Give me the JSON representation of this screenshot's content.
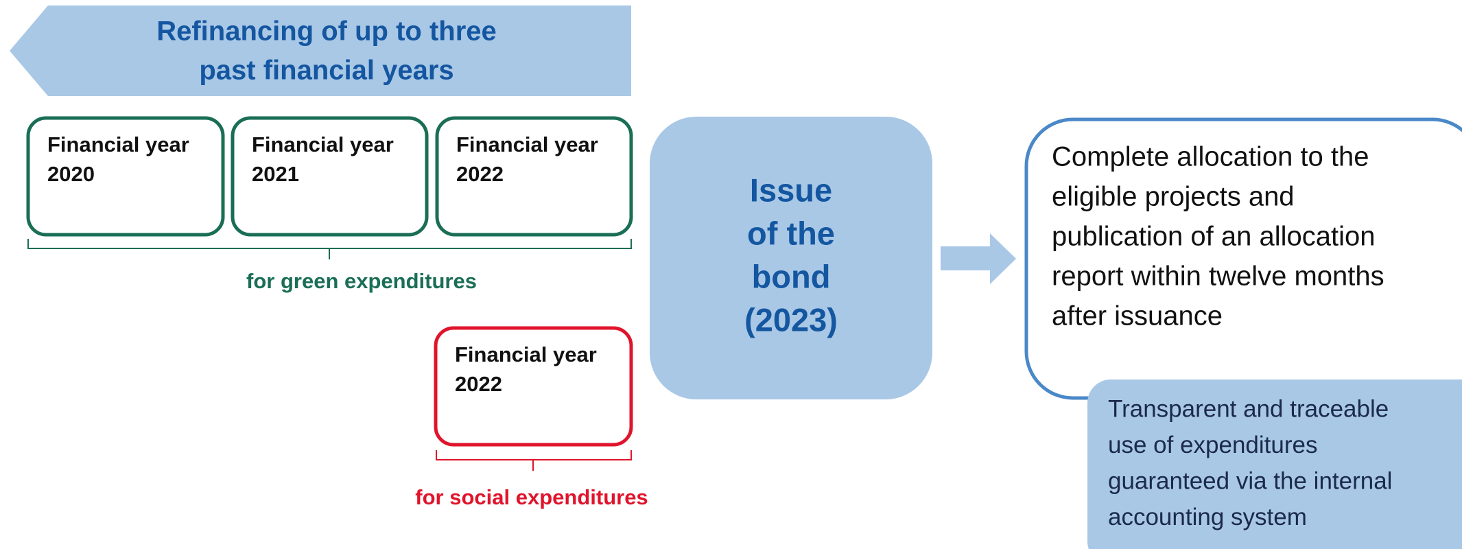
{
  "banner": {
    "lines": [
      "Refinancing of up to three",
      "past financial years"
    ]
  },
  "green_years": [
    {
      "lines": [
        "Financial year",
        "2020"
      ]
    },
    {
      "lines": [
        "Financial year",
        "2021"
      ]
    },
    {
      "lines": [
        "Financial year",
        "2022"
      ]
    }
  ],
  "green_label": "for green expenditures",
  "social_years": [
    {
      "lines": [
        "Financial year",
        "2022"
      ]
    }
  ],
  "social_label": "for social expenditures",
  "bond": {
    "lines": [
      "Issue",
      "of the",
      "bond",
      "(2023)"
    ]
  },
  "result": {
    "lines": [
      "Complete allocation to the",
      "eligible projects and",
      "publication of an allocation",
      "report within twelve months",
      "after issuance"
    ]
  },
  "note": {
    "lines": [
      "Transparent and traceable",
      "use of expenditures",
      "guaranteed via the internal",
      "accounting system"
    ]
  }
}
